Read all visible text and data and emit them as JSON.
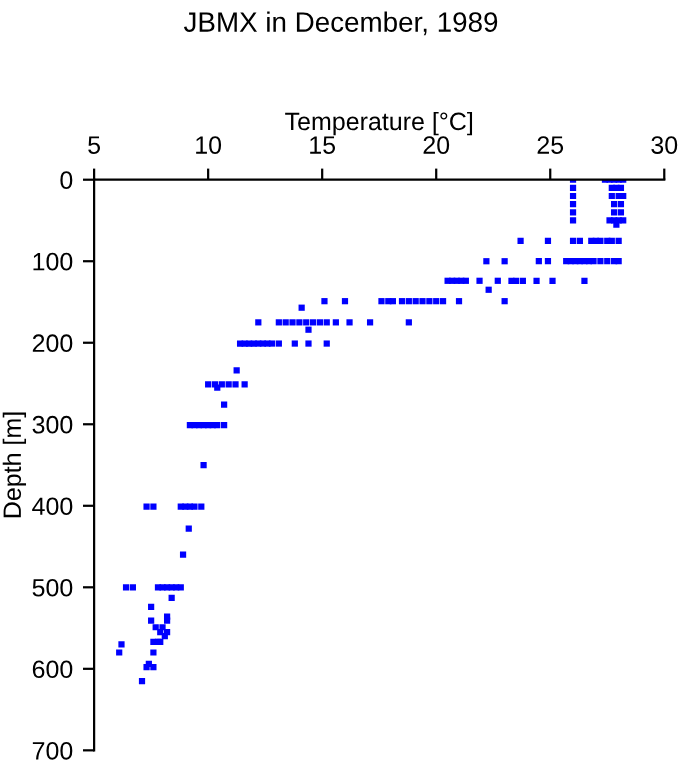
{
  "chart_data": {
    "type": "scatter",
    "title": "JBMX in December, 1989",
    "xlabel": "Temperature [°C]",
    "ylabel": "Depth [m]",
    "xlim": [
      5,
      30
    ],
    "xticks": [
      5,
      10,
      15,
      20,
      25,
      30
    ],
    "ylim": [
      700,
      0
    ],
    "yticks": [
      0,
      100,
      200,
      300,
      400,
      500,
      600,
      700
    ],
    "grid": false,
    "legend": false,
    "marker": "square",
    "series": [
      {
        "color": "#0000ff",
        "x": [
          26.0,
          27.4,
          27.6,
          27.8,
          28.0,
          28.2,
          26.0,
          27.7,
          27.9,
          28.1,
          26.0,
          27.7,
          28.0,
          28.2,
          26.0,
          27.8,
          28.1,
          26.0,
          27.8,
          28.1,
          26.0,
          27.6,
          27.8,
          28.0,
          28.2,
          27.9,
          23.7,
          24.9,
          26.0,
          26.3,
          26.8,
          27.0,
          27.2,
          27.5,
          27.7,
          28.0,
          22.2,
          23.0,
          24.5,
          24.9,
          25.7,
          25.9,
          26.1,
          26.3,
          26.5,
          26.7,
          26.9,
          27.2,
          27.5,
          27.8,
          28.0,
          20.5,
          20.7,
          20.9,
          21.1,
          21.3,
          21.9,
          22.7,
          23.3,
          23.5,
          23.8,
          24.4,
          25.1,
          26.5,
          22.3,
          15.1,
          16.0,
          17.6,
          17.9,
          18.1,
          18.5,
          18.8,
          19.1,
          19.4,
          19.7,
          20.0,
          20.3,
          21.0,
          23.0,
          14.1,
          12.2,
          13.1,
          13.4,
          13.7,
          14.0,
          14.3,
          14.6,
          14.9,
          15.2,
          15.6,
          16.2,
          17.1,
          18.8,
          14.4,
          11.4,
          11.6,
          11.8,
          12.0,
          12.2,
          12.4,
          12.6,
          12.8,
          13.1,
          13.8,
          14.4,
          15.2,
          11.25,
          10.0,
          10.3,
          10.6,
          10.9,
          11.2,
          11.6,
          10.4,
          10.7,
          9.2,
          9.4,
          9.6,
          9.8,
          10.0,
          10.2,
          10.4,
          10.7,
          9.8,
          7.3,
          7.6,
          8.8,
          9.0,
          9.2,
          9.4,
          9.7,
          9.15,
          8.9,
          6.4,
          6.7,
          7.8,
          8.0,
          8.2,
          8.4,
          8.6,
          8.8,
          8.4,
          7.5,
          8.2,
          7.5,
          8.2,
          7.7,
          8.0,
          7.9,
          8.2,
          8.1,
          7.6,
          7.8,
          7.9,
          6.2,
          6.1,
          7.6,
          7.4,
          7.3,
          7.6,
          7.1
        ],
        "values": [
          0,
          0,
          0,
          0,
          0,
          0,
          10,
          10,
          10,
          10,
          20,
          20,
          20,
          20,
          30,
          30,
          30,
          40,
          40,
          40,
          50,
          50,
          50,
          50,
          50,
          55,
          75,
          75,
          75,
          75,
          75,
          75,
          75,
          75,
          75,
          75,
          100,
          100,
          100,
          100,
          100,
          100,
          100,
          100,
          100,
          100,
          100,
          100,
          100,
          100,
          100,
          124,
          124,
          124,
          124,
          124,
          124,
          124,
          124,
          124,
          124,
          124,
          124,
          124,
          135,
          149,
          149,
          149,
          149,
          149,
          149,
          149,
          149,
          149,
          149,
          149,
          149,
          149,
          149,
          157,
          175,
          175,
          175,
          175,
          175,
          175,
          175,
          175,
          175,
          175,
          175,
          175,
          175,
          184,
          201,
          201,
          201,
          201,
          201,
          201,
          201,
          201,
          201,
          201,
          201,
          201,
          234,
          251,
          251,
          251,
          251,
          251,
          251,
          255,
          276,
          301,
          301,
          301,
          301,
          301,
          301,
          301,
          301,
          350,
          401,
          401,
          401,
          401,
          401,
          401,
          401,
          428,
          460,
          500,
          500,
          500,
          500,
          500,
          500,
          500,
          500,
          513,
          524,
          536,
          541,
          541,
          549,
          549,
          555,
          555,
          560,
          567,
          567,
          567,
          570,
          580,
          580,
          594,
          598,
          598,
          615
        ]
      }
    ]
  }
}
